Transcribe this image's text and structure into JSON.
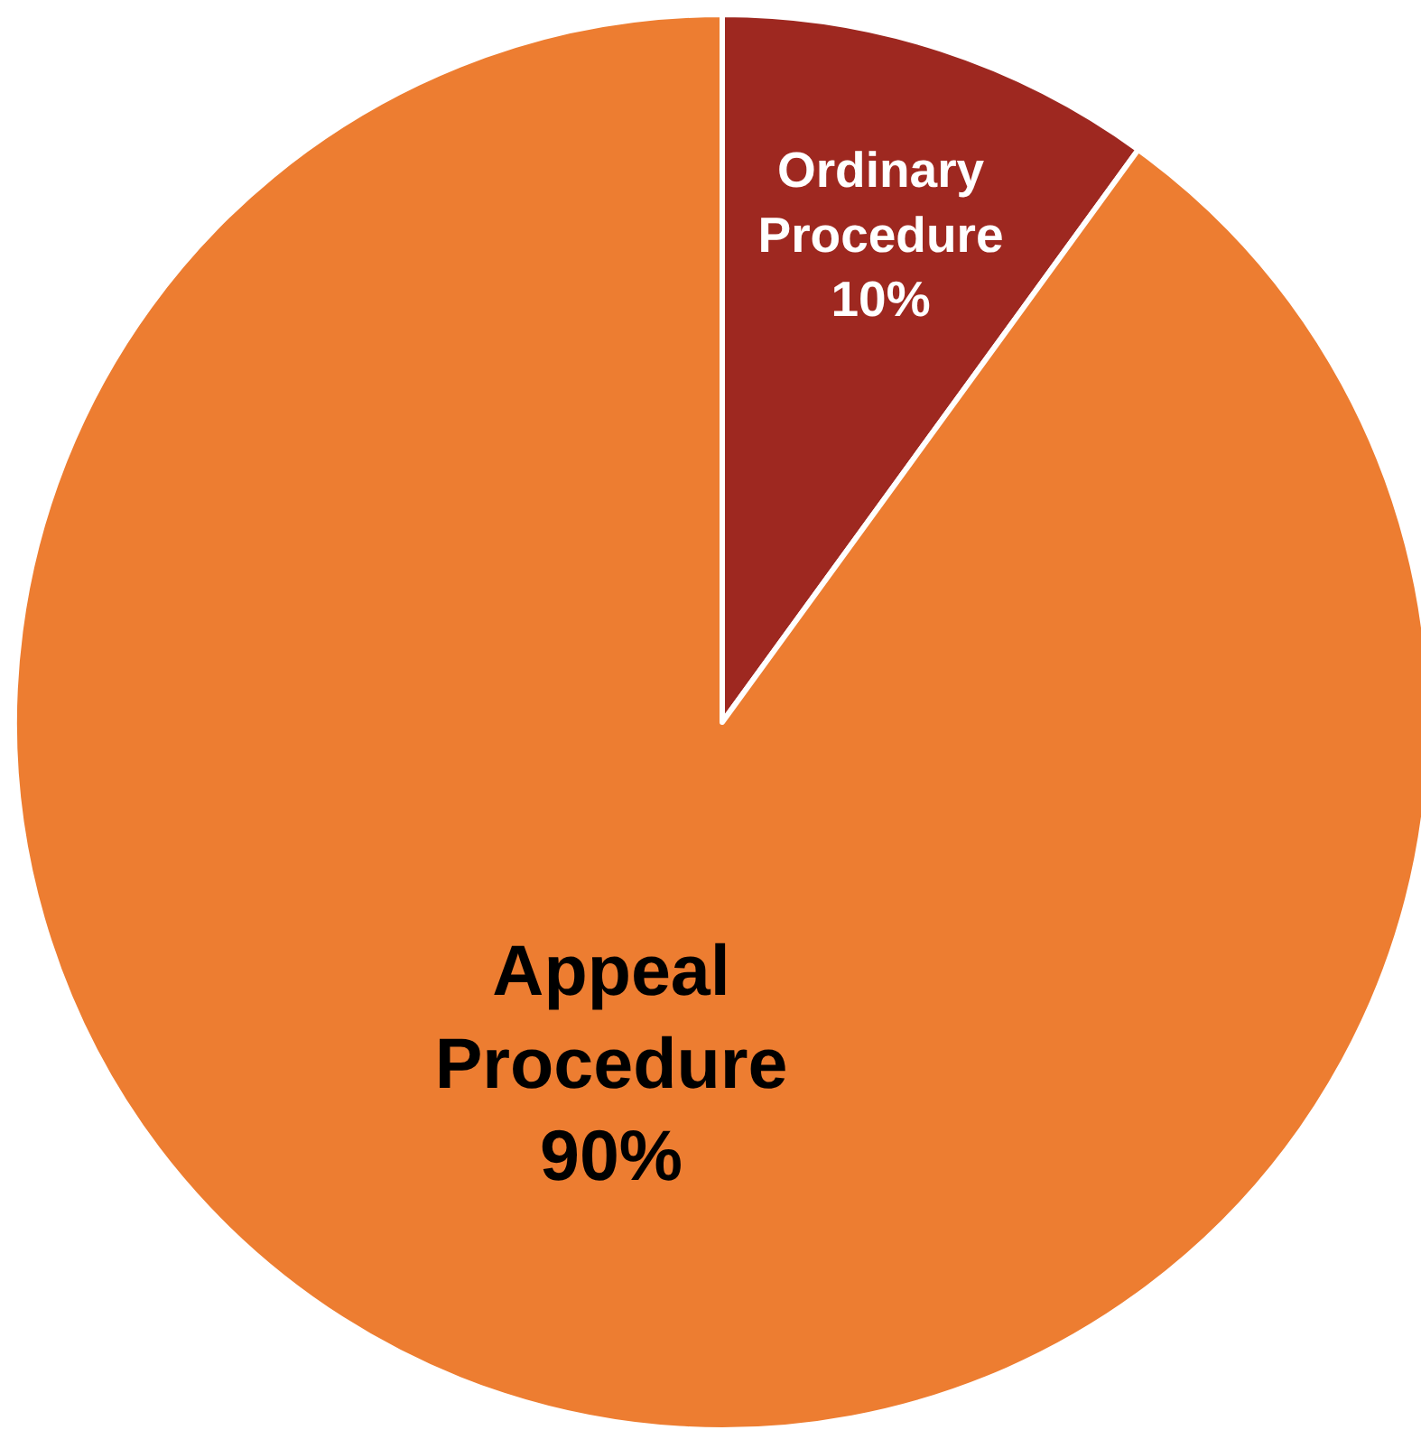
{
  "chart_data": {
    "type": "pie",
    "categories": [
      "Ordinary Procedure",
      "Appeal Procedure"
    ],
    "values": [
      10,
      90
    ],
    "colors": [
      "#9e2820",
      "#ed7d31"
    ],
    "value_labels": [
      "10%",
      "90%"
    ],
    "legend": false
  }
}
